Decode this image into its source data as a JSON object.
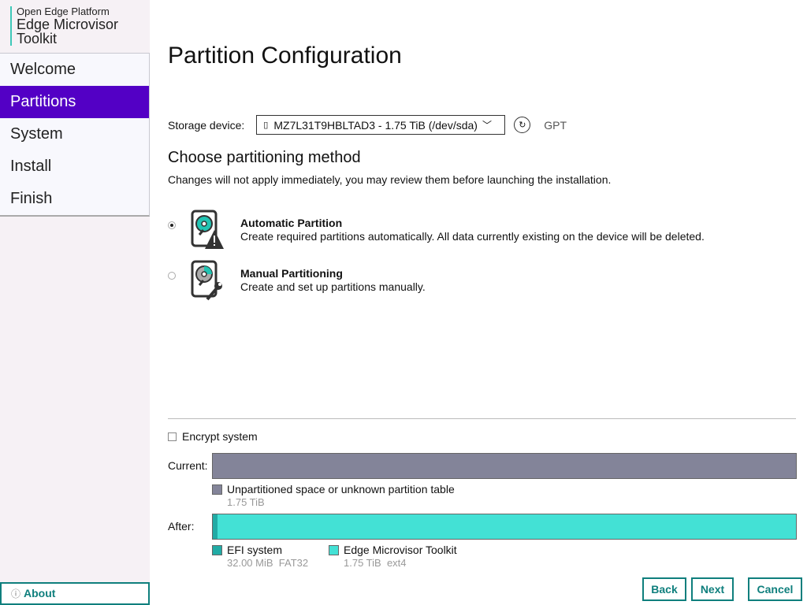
{
  "sidebar": {
    "brand_top": "Open Edge Platform",
    "brand_title_1": "Edge Microvisor",
    "brand_title_2": "Toolkit",
    "items": [
      {
        "label": "Welcome"
      },
      {
        "label": "Partitions",
        "active": true
      },
      {
        "label": "System"
      },
      {
        "label": "Install"
      },
      {
        "label": "Finish"
      }
    ],
    "about": "About",
    "about_icon": "info-icon"
  },
  "page": {
    "title": "Partition Configuration",
    "storage_label": "Storage device:",
    "storage_value": "MZ7L31T9HBLTAD3 - 1.75 TiB (/dev/sda)",
    "partition_table": "GPT",
    "method_heading": "Choose partitioning method",
    "method_note": "Changes will not apply immediately, you may review them before launching the installation.",
    "options": [
      {
        "title": "Automatic Partition",
        "desc": "Create required partitions automatically. All data currently existing on the device will be deleted.",
        "selected": true
      },
      {
        "title": "Manual Partitioning",
        "desc": "Create and set up partitions manually.",
        "selected": false
      }
    ],
    "encrypt_label": "Encrypt system",
    "encrypt_checked": false,
    "current_label": "Current:",
    "after_label": "After:",
    "current": [
      {
        "name": "Unpartitioned space or unknown partition table",
        "size": "1.75 TiB",
        "color": "#838499"
      }
    ],
    "after": [
      {
        "name": "EFI system",
        "size": "32.00 MiB",
        "fs": "FAT32",
        "color": "#21aba5"
      },
      {
        "name": "Edge Microvisor Toolkit",
        "size": "1.75 TiB",
        "fs": "ext4",
        "color": "#43e1d5"
      }
    ]
  },
  "buttons": {
    "back": "Back",
    "next": "Next",
    "cancel": "Cancel"
  },
  "colors": {
    "accent": "#5300c5",
    "teal": "#0f7f7d"
  }
}
